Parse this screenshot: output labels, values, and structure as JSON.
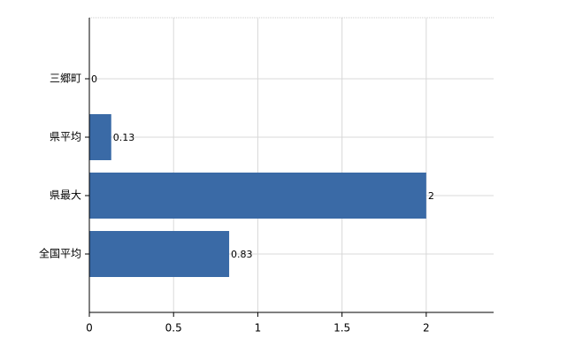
{
  "chart_data": {
    "type": "bar",
    "orientation": "horizontal",
    "categories": [
      "三郷町",
      "県平均",
      "県最大",
      "全国平均"
    ],
    "values": [
      0,
      0.13,
      2,
      0.83
    ],
    "color": "#3a6aa6",
    "xlim": [
      0,
      2.4
    ],
    "xticks": [
      0,
      0.5,
      1,
      1.5,
      2
    ],
    "grid": true
  }
}
